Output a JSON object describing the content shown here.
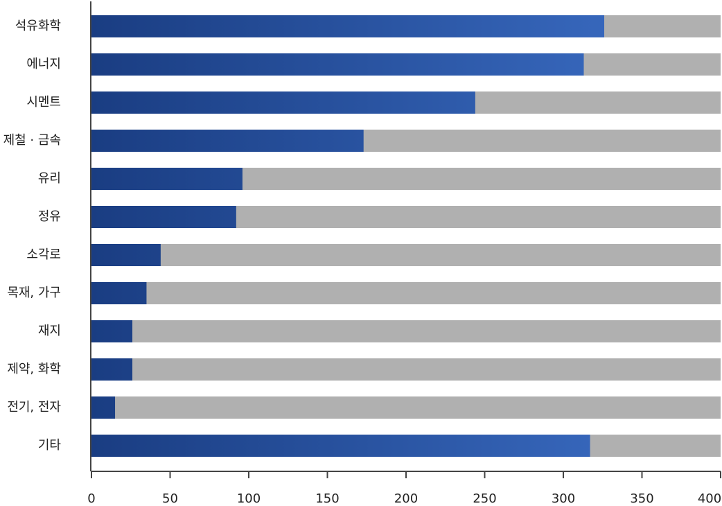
{
  "chart_data": {
    "type": "bar",
    "orientation": "horizontal",
    "categories": [
      "석유화학",
      "에너지",
      "시멘트",
      "제철 · 금속",
      "유리",
      "정유",
      "소각로",
      "목재, 가구",
      "재지",
      "제약, 화학",
      "전기, 전자",
      "기타"
    ],
    "values": [
      326,
      313,
      244,
      173,
      96,
      92,
      44,
      35,
      26,
      26,
      15,
      317
    ],
    "color": [
      "#1a3d82",
      "#3d70c8"
    ],
    "track_color": "#b0b0b0",
    "xlim": [
      0,
      400
    ],
    "xticks": [
      0,
      50,
      100,
      150,
      200,
      250,
      300,
      350,
      400
    ]
  }
}
